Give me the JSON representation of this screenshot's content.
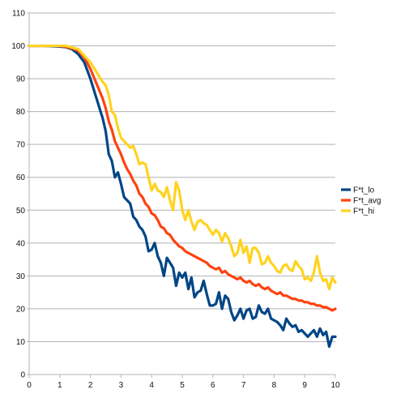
{
  "chart_data": {
    "type": "line",
    "title": "",
    "xlabel": "",
    "ylabel": "",
    "xlim": [
      0,
      10
    ],
    "ylim": [
      0,
      110
    ],
    "x_ticks": [
      0,
      1,
      2,
      3,
      4,
      5,
      6,
      7,
      8,
      9,
      10
    ],
    "y_ticks": [
      0,
      10,
      20,
      30,
      40,
      50,
      60,
      70,
      80,
      90,
      100,
      110
    ],
    "grid": "horizontal",
    "legend_position": "right",
    "series": [
      {
        "name": "F*t_lo",
        "color": "#004586",
        "points": [
          [
            0,
            100
          ],
          [
            0.5,
            100
          ],
          [
            1,
            99.8
          ],
          [
            1.2,
            99.6
          ],
          [
            1.4,
            99.0
          ],
          [
            1.6,
            97.5
          ],
          [
            1.8,
            95
          ],
          [
            2.0,
            90
          ],
          [
            2.2,
            84
          ],
          [
            2.4,
            78
          ],
          [
            2.5,
            74
          ],
          [
            2.6,
            67
          ],
          [
            2.7,
            65
          ],
          [
            2.8,
            60
          ],
          [
            2.9,
            61.5
          ],
          [
            3.0,
            58
          ],
          [
            3.1,
            54
          ],
          [
            3.2,
            53
          ],
          [
            3.3,
            52
          ],
          [
            3.4,
            48
          ],
          [
            3.5,
            47
          ],
          [
            3.6,
            45
          ],
          [
            3.7,
            44
          ],
          [
            3.8,
            42
          ],
          [
            3.9,
            37.5
          ],
          [
            4.0,
            38
          ],
          [
            4.1,
            40
          ],
          [
            4.2,
            36
          ],
          [
            4.3,
            34
          ],
          [
            4.4,
            30
          ],
          [
            4.5,
            35.5
          ],
          [
            4.6,
            34
          ],
          [
            4.7,
            32.5
          ],
          [
            4.8,
            27
          ],
          [
            4.9,
            31
          ],
          [
            5.0,
            29.5
          ],
          [
            5.1,
            31
          ],
          [
            5.2,
            26
          ],
          [
            5.3,
            29.5
          ],
          [
            5.4,
            23.5
          ],
          [
            5.5,
            25
          ],
          [
            5.6,
            25.5
          ],
          [
            5.7,
            28.5
          ],
          [
            5.8,
            24.5
          ],
          [
            5.9,
            21
          ],
          [
            6.0,
            21
          ],
          [
            6.1,
            21.5
          ],
          [
            6.2,
            25
          ],
          [
            6.3,
            20
          ],
          [
            6.4,
            24
          ],
          [
            6.5,
            23
          ],
          [
            6.6,
            19
          ],
          [
            6.7,
            16.5
          ],
          [
            6.8,
            18
          ],
          [
            6.9,
            20
          ],
          [
            7.0,
            17
          ],
          [
            7.1,
            19.5
          ],
          [
            7.2,
            20
          ],
          [
            7.3,
            17
          ],
          [
            7.4,
            17.5
          ],
          [
            7.5,
            21
          ],
          [
            7.6,
            19
          ],
          [
            7.7,
            18.5
          ],
          [
            7.8,
            20
          ],
          [
            7.9,
            17
          ],
          [
            8.0,
            16.5
          ],
          [
            8.1,
            16
          ],
          [
            8.2,
            15
          ],
          [
            8.3,
            13.5
          ],
          [
            8.4,
            17
          ],
          [
            8.5,
            15.5
          ],
          [
            8.6,
            14.5
          ],
          [
            8.7,
            15
          ],
          [
            8.8,
            13
          ],
          [
            8.9,
            13.5
          ],
          [
            9.0,
            12.5
          ],
          [
            9.1,
            11.5
          ],
          [
            9.2,
            12.5
          ],
          [
            9.3,
            13.5
          ],
          [
            9.4,
            11.5
          ],
          [
            9.5,
            14
          ],
          [
            9.6,
            12
          ],
          [
            9.7,
            13
          ],
          [
            9.8,
            8.5
          ],
          [
            9.9,
            11.5
          ],
          [
            10.0,
            11.5
          ]
        ]
      },
      {
        "name": "F*t_avg",
        "color": "#ff420e",
        "points": [
          [
            0,
            100
          ],
          [
            0.5,
            100
          ],
          [
            1,
            100
          ],
          [
            1.2,
            99.7
          ],
          [
            1.4,
            99.3
          ],
          [
            1.6,
            98.5
          ],
          [
            1.8,
            96.5
          ],
          [
            2.0,
            93
          ],
          [
            2.2,
            88.5
          ],
          [
            2.4,
            84
          ],
          [
            2.5,
            81
          ],
          [
            2.6,
            77
          ],
          [
            2.7,
            74.5
          ],
          [
            2.8,
            71
          ],
          [
            2.9,
            69
          ],
          [
            3.0,
            67
          ],
          [
            3.1,
            64.5
          ],
          [
            3.2,
            62.5
          ],
          [
            3.3,
            61
          ],
          [
            3.4,
            59
          ],
          [
            3.5,
            57.5
          ],
          [
            3.6,
            55
          ],
          [
            3.7,
            54
          ],
          [
            3.8,
            52
          ],
          [
            3.9,
            51
          ],
          [
            4.0,
            49
          ],
          [
            4.1,
            48.5
          ],
          [
            4.2,
            47
          ],
          [
            4.3,
            45
          ],
          [
            4.4,
            44.5
          ],
          [
            4.5,
            43
          ],
          [
            4.6,
            42.5
          ],
          [
            4.7,
            41
          ],
          [
            4.8,
            40
          ],
          [
            4.9,
            39
          ],
          [
            5.0,
            38.5
          ],
          [
            5.1,
            37.5
          ],
          [
            5.2,
            37
          ],
          [
            5.3,
            36.5
          ],
          [
            5.4,
            36
          ],
          [
            5.5,
            35.5
          ],
          [
            5.6,
            35
          ],
          [
            5.7,
            34.5
          ],
          [
            5.8,
            34
          ],
          [
            5.9,
            33
          ],
          [
            6.0,
            32.5
          ],
          [
            6.1,
            32
          ],
          [
            6.2,
            32.5
          ],
          [
            6.3,
            31
          ],
          [
            6.4,
            31.5
          ],
          [
            6.5,
            30.5
          ],
          [
            6.6,
            30
          ],
          [
            6.7,
            29.5
          ],
          [
            6.8,
            29
          ],
          [
            6.9,
            29.5
          ],
          [
            7.0,
            28.5
          ],
          [
            7.1,
            28
          ],
          [
            7.2,
            28.5
          ],
          [
            7.3,
            27.5
          ],
          [
            7.4,
            27
          ],
          [
            7.5,
            27.5
          ],
          [
            7.6,
            26.5
          ],
          [
            7.7,
            26
          ],
          [
            7.8,
            26.5
          ],
          [
            7.9,
            25.5
          ],
          [
            8.0,
            25
          ],
          [
            8.1,
            24.5
          ],
          [
            8.2,
            25
          ],
          [
            8.3,
            24
          ],
          [
            8.4,
            24
          ],
          [
            8.5,
            23.5
          ],
          [
            8.6,
            23
          ],
          [
            8.7,
            23
          ],
          [
            8.8,
            22.5
          ],
          [
            8.9,
            22.5
          ],
          [
            9.0,
            22
          ],
          [
            9.1,
            22
          ],
          [
            9.2,
            21.5
          ],
          [
            9.3,
            21.5
          ],
          [
            9.4,
            21
          ],
          [
            9.5,
            21
          ],
          [
            9.6,
            20.5
          ],
          [
            9.7,
            20.5
          ],
          [
            9.8,
            20
          ],
          [
            9.9,
            19.5
          ],
          [
            10.0,
            20
          ]
        ]
      },
      {
        "name": "F*t_hi",
        "color": "#ffd320",
        "points": [
          [
            0,
            100
          ],
          [
            0.5,
            100
          ],
          [
            1,
            100
          ],
          [
            1.2,
            100
          ],
          [
            1.4,
            99.5
          ],
          [
            1.6,
            99
          ],
          [
            1.8,
            97
          ],
          [
            2.0,
            95
          ],
          [
            2.2,
            92
          ],
          [
            2.4,
            89
          ],
          [
            2.5,
            88
          ],
          [
            2.6,
            85
          ],
          [
            2.7,
            80
          ],
          [
            2.8,
            79
          ],
          [
            2.9,
            75
          ],
          [
            3.0,
            72
          ],
          [
            3.1,
            71
          ],
          [
            3.2,
            70
          ],
          [
            3.3,
            69
          ],
          [
            3.4,
            69.5
          ],
          [
            3.5,
            67
          ],
          [
            3.6,
            64
          ],
          [
            3.7,
            64.5
          ],
          [
            3.8,
            64
          ],
          [
            3.9,
            60
          ],
          [
            4.0,
            56
          ],
          [
            4.1,
            58
          ],
          [
            4.2,
            56
          ],
          [
            4.3,
            55.5
          ],
          [
            4.4,
            54
          ],
          [
            4.5,
            57
          ],
          [
            4.6,
            53
          ],
          [
            4.7,
            50
          ],
          [
            4.8,
            58.5
          ],
          [
            4.9,
            56
          ],
          [
            5.0,
            50
          ],
          [
            5.1,
            47
          ],
          [
            5.2,
            50
          ],
          [
            5.3,
            46.5
          ],
          [
            5.4,
            44
          ],
          [
            5.5,
            46.5
          ],
          [
            5.6,
            47
          ],
          [
            5.7,
            46
          ],
          [
            5.8,
            45.5
          ],
          [
            5.9,
            44
          ],
          [
            6.0,
            42.5
          ],
          [
            6.1,
            44
          ],
          [
            6.2,
            43
          ],
          [
            6.3,
            40.5
          ],
          [
            6.4,
            43
          ],
          [
            6.5,
            41.5
          ],
          [
            6.6,
            39
          ],
          [
            6.7,
            36
          ],
          [
            6.8,
            37
          ],
          [
            6.9,
            41
          ],
          [
            7.0,
            37
          ],
          [
            7.1,
            39
          ],
          [
            7.2,
            34
          ],
          [
            7.3,
            38.5
          ],
          [
            7.4,
            38.5
          ],
          [
            7.5,
            37
          ],
          [
            7.6,
            33.5
          ],
          [
            7.7,
            34
          ],
          [
            7.8,
            36
          ],
          [
            7.9,
            34
          ],
          [
            8.0,
            33
          ],
          [
            8.1,
            31.5
          ],
          [
            8.2,
            31
          ],
          [
            8.3,
            33
          ],
          [
            8.4,
            33.5
          ],
          [
            8.5,
            32
          ],
          [
            8.6,
            31.5
          ],
          [
            8.7,
            34.5
          ],
          [
            8.8,
            33
          ],
          [
            8.9,
            32
          ],
          [
            9.0,
            29
          ],
          [
            9.1,
            29.5
          ],
          [
            9.2,
            28.5
          ],
          [
            9.3,
            31
          ],
          [
            9.4,
            36
          ],
          [
            9.5,
            31
          ],
          [
            9.6,
            28.5
          ],
          [
            9.7,
            29
          ],
          [
            9.8,
            26
          ],
          [
            9.9,
            29.5
          ],
          [
            10.0,
            28
          ]
        ]
      }
    ]
  }
}
